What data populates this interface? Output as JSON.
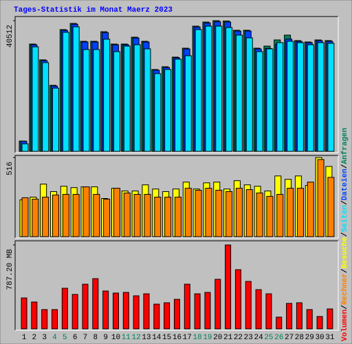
{
  "chart_data": [
    {
      "type": "bar",
      "title": "Tages-Statistik im Monat Maerz 2023",
      "ylim": [
        0,
        40512
      ],
      "yticks": [
        40512
      ],
      "series": [
        {
          "name": "Anfragen",
          "color": "#00805c",
          "values": [
            3200,
            33260,
            28360,
            20470,
            37740,
            39660,
            34110,
            34110,
            37100,
            33260,
            33260,
            35390,
            34110,
            25370,
            26230,
            29210,
            31980,
            38810,
            40080,
            40512,
            40400,
            37530,
            37530,
            31980,
            32620,
            34540,
            36030,
            34330,
            33900,
            34540,
            34330
          ]
        },
        {
          "name": "Dateien",
          "color": "#0040ff",
          "values": [
            3150,
            33050,
            28150,
            20250,
            37500,
            39400,
            33900,
            33900,
            36800,
            33050,
            33050,
            35150,
            33900,
            25150,
            26000,
            29000,
            31750,
            38550,
            39800,
            40200,
            40100,
            37300,
            37300,
            31750,
            31900,
            33200,
            34800,
            34100,
            33700,
            34300,
            34100
          ]
        },
        {
          "name": "Seiten",
          "color": "#00e0ff",
          "values": [
            2350,
            32400,
            27500,
            19600,
            36900,
            38600,
            31560,
            31560,
            34760,
            30920,
            32620,
            33050,
            31770,
            24100,
            25370,
            28570,
            29640,
            37740,
            38810,
            38810,
            38380,
            36030,
            35180,
            30920,
            31770,
            33690,
            34110,
            33690,
            33050,
            33690,
            33480
          ]
        }
      ]
    },
    {
      "type": "bar",
      "ylim": [
        0,
        516
      ],
      "yticks": [
        516
      ],
      "series": [
        {
          "name": "Besuche",
          "color": "#ffff00",
          "values": [
            240,
            258,
            343,
            294,
            329,
            320,
            325,
            325,
            249,
            316,
            298,
            298,
            338,
            311,
            294,
            311,
            356,
            311,
            351,
            356,
            311,
            365,
            338,
            329,
            298,
            396,
            374,
            396,
            334,
            516,
            458
          ]
        },
        {
          "name": "Rechner",
          "color": "#ff8000",
          "values": [
            254,
            245,
            258,
            272,
            276,
            276,
            325,
            276,
            245,
            316,
            285,
            276,
            276,
            258,
            258,
            258,
            316,
            303,
            316,
            303,
            294,
            316,
            307,
            285,
            263,
            276,
            316,
            316,
            356,
            503,
            387
          ]
        }
      ]
    },
    {
      "type": "bar",
      "ylim": [
        0,
        787.2
      ],
      "yticks": [
        {
          "value": 787.2,
          "label": "787.20 MB"
        }
      ],
      "series": [
        {
          "name": "Volumen",
          "color": "#ff0000",
          "values": [
            290,
            252,
            181,
            181,
            381,
            323,
            419,
            471,
            355,
            336,
            342,
            310,
            329,
            232,
            245,
            277,
            419,
            329,
            342,
            465,
            787.2,
            555,
            445,
            368,
            329,
            110,
            239,
            245,
            181,
            116,
            187
          ]
        }
      ],
      "categories": [
        "1",
        "2",
        "3",
        "4",
        "5",
        "6",
        "7",
        "8",
        "9",
        "10",
        "11",
        "12",
        "13",
        "14",
        "15",
        "16",
        "17",
        "18",
        "19",
        "20",
        "21",
        "22",
        "23",
        "24",
        "25",
        "26",
        "27",
        "28",
        "29",
        "30",
        "31"
      ],
      "category_colors": [
        "#000000",
        "#000000",
        "#000000",
        "#00805c",
        "#00805c",
        "#000000",
        "#000000",
        "#000000",
        "#000000",
        "#000000",
        "#00805c",
        "#00805c",
        "#000000",
        "#000000",
        "#000000",
        "#000000",
        "#000000",
        "#00805c",
        "#00805c",
        "#000000",
        "#000000",
        "#000000",
        "#000000",
        "#000000",
        "#00805c",
        "#00805c",
        "#000000",
        "#000000",
        "#000000",
        "#000000",
        "#000000"
      ]
    }
  ],
  "legend_separator": "/"
}
